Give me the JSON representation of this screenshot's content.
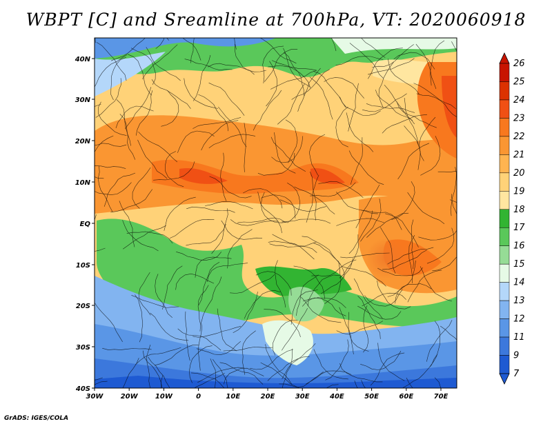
{
  "title": "WBPT [C] and Sreamline at 700hPa, VT: 2020060918",
  "footer": "GrADS: IGES/COLA",
  "map": {
    "lon_ticks": [
      "30W",
      "20W",
      "10W",
      "0",
      "10E",
      "20E",
      "30E",
      "40E",
      "50E",
      "60E",
      "70E"
    ],
    "lat_ticks": [
      "40N",
      "30N",
      "20N",
      "10N",
      "EQ",
      "10S",
      "20S",
      "30S",
      "40S"
    ]
  },
  "colorbar": {
    "levels": [
      "26",
      "25",
      "24",
      "23",
      "22",
      "21",
      "20",
      "19",
      "18",
      "17",
      "16",
      "15",
      "14",
      "13",
      "12",
      "11",
      "9",
      "7"
    ],
    "colors": [
      "#c81400",
      "#dc3200",
      "#f05014",
      "#f8781e",
      "#fa9632",
      "#ffb450",
      "#ffd278",
      "#ffe6a0",
      "#32b432",
      "#5ac85a",
      "#96dc96",
      "#e6fae6",
      "#b4d7fa",
      "#82b4f0",
      "#5a96e6",
      "#3c78dc",
      "#1e5ad2"
    ]
  }
}
